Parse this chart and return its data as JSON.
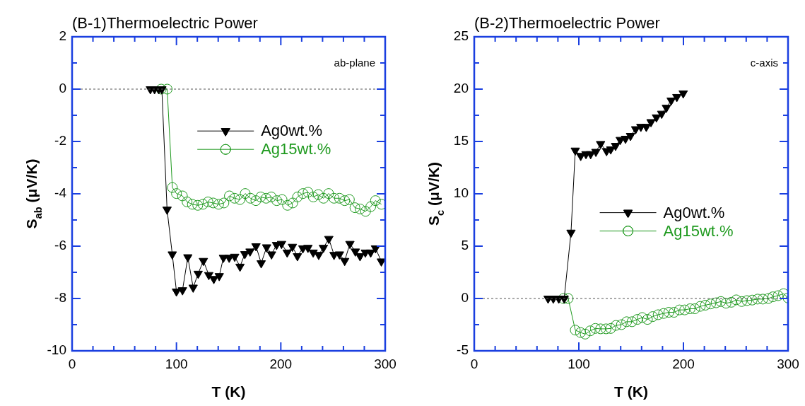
{
  "chart_data": [
    {
      "type": "line",
      "title": "(B-1)Thermoelectric Power",
      "xlabel": "T (K)",
      "ylabel": "S$_{ab}$ (μV/K)",
      "annotations": [
        "ab-plane"
      ],
      "legend": "top right",
      "grid": false,
      "xlim": [
        0,
        300
      ],
      "xticks": [
        0,
        {
          "value": 20,
          "label": null
        },
        {
          "value": 40,
          "label": null
        },
        {
          "value": 60,
          "label": null
        },
        {
          "value": 80,
          "label": null
        },
        100,
        {
          "value": 120,
          "label": null
        },
        {
          "value": 140,
          "label": null
        },
        {
          "value": 160,
          "label": null
        },
        {
          "value": 180,
          "label": null
        },
        200,
        {
          "value": 220,
          "label": null
        },
        {
          "value": 240,
          "label": null
        },
        {
          "value": 260,
          "label": null
        },
        {
          "value": 280,
          "label": null
        },
        300
      ],
      "ylim": [
        -10,
        2
      ],
      "yticks": [
        -10,
        {
          "value": -9,
          "label": null
        },
        -8,
        {
          "value": -7,
          "label": null
        },
        -6,
        {
          "value": -5,
          "label": null
        },
        -4,
        {
          "value": -3,
          "label": null
        },
        -2,
        {
          "value": -1,
          "label": null
        },
        0,
        {
          "value": 1,
          "label": null
        },
        2
      ],
      "ref_lines": [
        {
          "axis": "y",
          "value": 0,
          "line_style": "dashed",
          "color": "#555555"
        }
      ],
      "series": [
        {
          "name": "Ag0wt.%",
          "color": "#000000",
          "marker": "triangle",
          "x": [
            75,
            79,
            83,
            86,
            91,
            96,
            100,
            105.8,
            110.9,
            116,
            120.8,
            125.8,
            131,
            135.8,
            141,
            145,
            150.5,
            155.8,
            160.9,
            165.5,
            170.5,
            176.2,
            181.2,
            186.4,
            191.1,
            195.9,
            200.7,
            206.1,
            211.1,
            215.9,
            221.1,
            226,
            231,
            236.3,
            240.8,
            246,
            251,
            256.2,
            261.2,
            266.2,
            271.4,
            275.9,
            281,
            286.1,
            290.7,
            296.3
          ],
          "values": [
            0,
            0,
            0,
            0,
            -4.6,
            -6.31,
            -7.73,
            -7.68,
            -6.42,
            -7.58,
            -7.05,
            -6.56,
            -7.1,
            -7.25,
            -7.14,
            -6.44,
            -6.44,
            -6.4,
            -6.78,
            -6.3,
            -6.2,
            -6.0,
            -6.65,
            -6.04,
            -6.31,
            -5.95,
            -5.91,
            -6.24,
            -6.02,
            -6.38,
            -6.08,
            -6.06,
            -6.24,
            -6.33,
            -6.06,
            -5.72,
            -6.33,
            -6.31,
            -6.56,
            -5.91,
            -6.2,
            -6.38,
            -6.24,
            -6.24,
            -6.08,
            -6.58
          ]
        },
        {
          "name": "Ag15wt.%",
          "color": "#1f9a1f",
          "marker": "circle",
          "x": [
            85.4,
            91.1,
            96.1,
            100,
            105.7,
            110.2,
            115.2,
            120.4,
            125.4,
            130.2,
            135.2,
            140.4,
            145.5,
            150.7,
            155.7,
            160.9,
            165.9,
            170.9,
            176.1,
            180.7,
            185.9,
            190.9,
            196.1,
            201.2,
            206.4,
            211.4,
            216,
            221.2,
            226.1,
            231.1,
            235.9,
            240.9,
            245.8,
            251,
            256.2,
            261.2,
            265.7,
            271,
            276,
            281.2,
            286.2,
            290.7,
            296.4
          ],
          "values": [
            0,
            0,
            -3.76,
            -3.99,
            -4.08,
            -4.31,
            -4.4,
            -4.44,
            -4.4,
            -4.31,
            -4.35,
            -4.4,
            -4.35,
            -4.08,
            -4.17,
            -4.22,
            -3.99,
            -4.17,
            -4.26,
            -4.12,
            -4.17,
            -4.12,
            -4.26,
            -4.22,
            -4.44,
            -4.35,
            -4.12,
            -3.99,
            -3.94,
            -4.12,
            -4.03,
            -4.17,
            -3.99,
            -4.17,
            -4.17,
            -4.26,
            -4.22,
            -4.53,
            -4.58,
            -4.67,
            -4.49,
            -4.26,
            -4.4
          ]
        }
      ]
    },
    {
      "type": "line",
      "title": "(B-2)Thermoelectric Power",
      "xlabel": "T (K)",
      "ylabel": "S$_{c}$ (μV/K)",
      "annotations": [
        "c-axis"
      ],
      "legend": "right",
      "grid": false,
      "xlim": [
        0,
        300
      ],
      "xticks": [
        0,
        {
          "value": 20,
          "label": null
        },
        {
          "value": 40,
          "label": null
        },
        {
          "value": 60,
          "label": null
        },
        {
          "value": 80,
          "label": null
        },
        100,
        {
          "value": 120,
          "label": null
        },
        {
          "value": 140,
          "label": null
        },
        {
          "value": 160,
          "label": null
        },
        {
          "value": 180,
          "label": null
        },
        200,
        {
          "value": 220,
          "label": null
        },
        {
          "value": 240,
          "label": null
        },
        {
          "value": 260,
          "label": null
        },
        {
          "value": 280,
          "label": null
        },
        300
      ],
      "ylim": [
        -5,
        25
      ],
      "yticks": [
        -5,
        {
          "value": -2.5,
          "label": null
        },
        0,
        {
          "value": 2.5,
          "label": null
        },
        5,
        {
          "value": 7.5,
          "label": null
        },
        10,
        {
          "value": 12.5,
          "label": null
        },
        15,
        {
          "value": 17.5,
          "label": null
        },
        20,
        {
          "value": 22.5,
          "label": null
        },
        25
      ],
      "ref_lines": [
        {
          "axis": "y",
          "value": 0,
          "line_style": "dashed",
          "color": "#555555"
        }
      ],
      "series": [
        {
          "name": "Ag0wt.%",
          "color": "#000000",
          "marker": "triangle",
          "x": [
            70.6,
            75.6,
            80.8,
            86,
            92.5,
            96.6,
            101.8,
            106.8,
            111.3,
            116.3,
            120.8,
            126.5,
            130.5,
            135.1,
            139.6,
            144.6,
            149.4,
            154.3,
            159.3,
            164.5,
            169,
            174.2,
            179.2,
            183.7,
            188.3,
            193.7,
            199.8
          ],
          "values": [
            0,
            0,
            0,
            0,
            6.3,
            14.14,
            13.63,
            13.8,
            13.8,
            14.02,
            14.77,
            14.09,
            14.25,
            14.59,
            15.16,
            15.27,
            15.54,
            16.18,
            16.41,
            16.41,
            16.86,
            17.31,
            17.66,
            18.23,
            18.92,
            19.26,
            19.6
          ]
        },
        {
          "name": "Ag15wt.%",
          "color": "#1f9a1f",
          "marker": "circle",
          "x": [
            85.3,
            89.8,
            96.6,
            101.6,
            106.1,
            110.9,
            115.8,
            120.8,
            126,
            130.5,
            135.5,
            140.7,
            145.7,
            150.8,
            155.9,
            160.6,
            165.6,
            170.6,
            175.8,
            181,
            186,
            191,
            196.2,
            201.2,
            206.4,
            210.9,
            216.1,
            221,
            226,
            231.2,
            235.8,
            240.7,
            245.8,
            250.5,
            255.7,
            260.7,
            265.7,
            270.9,
            275.9,
            281.2,
            285.5,
            290.5,
            295.7,
            300
          ],
          "values": [
            0,
            0,
            -3.02,
            -3.25,
            -3.4,
            -3.09,
            -2.86,
            -2.9,
            -2.9,
            -2.86,
            -2.57,
            -2.5,
            -2.22,
            -2.22,
            -2.0,
            -1.82,
            -2.0,
            -1.73,
            -1.55,
            -1.43,
            -1.32,
            -1.32,
            -1.09,
            -1.09,
            -0.98,
            -0.98,
            -0.75,
            -0.64,
            -0.52,
            -0.41,
            -0.29,
            -0.45,
            -0.36,
            -0.13,
            -0.29,
            -0.2,
            -0.15,
            -0.06,
            -0.06,
            0,
            0.16,
            0.27,
            0.46,
            0.05
          ]
        }
      ]
    }
  ]
}
